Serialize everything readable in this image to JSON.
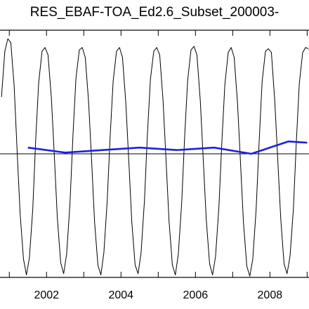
{
  "chart_data": {
    "type": "line",
    "title": "RES_EBAF-TOA_Ed2.6_Subset_200003-",
    "xlabel": "",
    "ylabel": "",
    "xlim": [
      2000.75,
      2009.05
    ],
    "ylim": [
      -1.0,
      1.0
    ],
    "x_ticks": [
      2001,
      2002,
      2003,
      2004,
      2005,
      2006,
      2007,
      2008,
      2009
    ],
    "x_tick_labels": [
      "2002",
      "2004",
      "2006",
      "2008"
    ],
    "x_tick_label_values": [
      2002,
      2004,
      2006,
      2008
    ],
    "reference_line_y": 0.0,
    "series": [
      {
        "name": "",
        "color": "#000000",
        "style": "monthly",
        "x": [
          2000.79,
          2000.88,
          2000.96,
          2001.04,
          2001.13,
          2001.21,
          2001.29,
          2001.38,
          2001.46,
          2001.54,
          2001.63,
          2001.71,
          2001.79,
          2001.88,
          2001.96,
          2002.04,
          2002.13,
          2002.21,
          2002.29,
          2002.38,
          2002.46,
          2002.54,
          2002.63,
          2002.71,
          2002.79,
          2002.88,
          2002.96,
          2003.04,
          2003.13,
          2003.21,
          2003.29,
          2003.38,
          2003.46,
          2003.54,
          2003.63,
          2003.71,
          2003.79,
          2003.88,
          2003.96,
          2004.04,
          2004.13,
          2004.21,
          2004.29,
          2004.38,
          2004.46,
          2004.54,
          2004.63,
          2004.71,
          2004.79,
          2004.88,
          2004.96,
          2005.04,
          2005.13,
          2005.21,
          2005.29,
          2005.38,
          2005.46,
          2005.54,
          2005.63,
          2005.71,
          2005.79,
          2005.88,
          2005.96,
          2006.04,
          2006.13,
          2006.21,
          2006.29,
          2006.38,
          2006.46,
          2006.54,
          2006.63,
          2006.71,
          2006.79,
          2006.88,
          2006.96,
          2007.04,
          2007.13,
          2007.21,
          2007.29,
          2007.38,
          2007.46,
          2007.54,
          2007.63,
          2007.71,
          2007.79,
          2007.88,
          2007.96,
          2008.04,
          2008.13,
          2008.21,
          2008.29,
          2008.38,
          2008.46,
          2008.54,
          2008.63,
          2008.71,
          2008.79,
          2008.88,
          2008.96,
          2009.04
        ],
        "y": [
          0.46,
          0.83,
          0.93,
          0.9,
          0.55,
          0.02,
          -0.48,
          -0.85,
          -0.98,
          -0.84,
          -0.45,
          0.12,
          0.58,
          0.83,
          0.86,
          0.8,
          0.45,
          -0.02,
          -0.52,
          -0.88,
          -0.97,
          -0.81,
          -0.4,
          0.15,
          0.61,
          0.84,
          0.86,
          0.78,
          0.42,
          -0.05,
          -0.55,
          -0.9,
          -0.98,
          -0.8,
          -0.38,
          0.15,
          0.59,
          0.83,
          0.86,
          0.78,
          0.41,
          -0.06,
          -0.55,
          -0.9,
          -0.97,
          -0.8,
          -0.38,
          0.16,
          0.6,
          0.83,
          0.86,
          0.8,
          0.43,
          -0.05,
          -0.54,
          -0.9,
          -0.98,
          -0.81,
          -0.4,
          0.14,
          0.59,
          0.84,
          0.87,
          0.8,
          0.43,
          -0.05,
          -0.53,
          -0.89,
          -0.98,
          -0.83,
          -0.43,
          0.1,
          0.56,
          0.82,
          0.86,
          0.78,
          0.41,
          -0.07,
          -0.56,
          -0.91,
          -0.99,
          -0.85,
          -0.45,
          0.09,
          0.58,
          0.83,
          0.85,
          0.82,
          0.43,
          -0.04,
          -0.52,
          -0.89,
          -0.97,
          -0.83,
          -0.45,
          0.1,
          0.57,
          0.82,
          0.86,
          0.85
        ]
      },
      {
        "name": "",
        "color": "#1f1fe0",
        "style": "annual",
        "x": [
          2001.5,
          2002.5,
          2003.5,
          2004.5,
          2005.5,
          2006.5,
          2007.5,
          2008.5,
          2009.0
        ],
        "y": [
          0.05,
          0.01,
          0.03,
          0.05,
          0.03,
          0.05,
          0.0,
          0.1,
          0.09
        ]
      }
    ]
  }
}
